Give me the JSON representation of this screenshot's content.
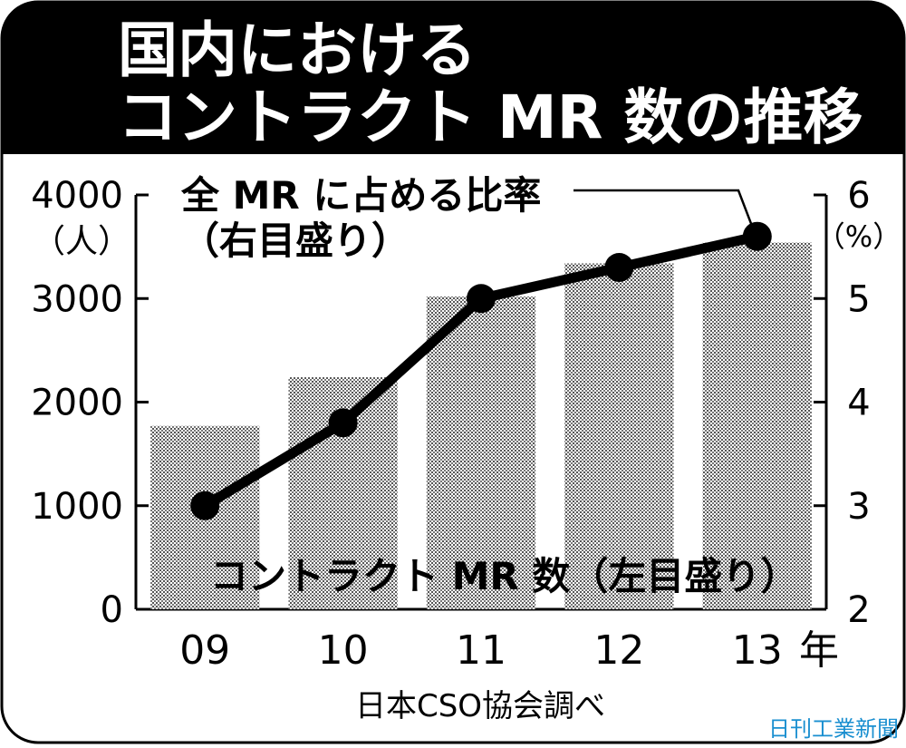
{
  "header": {
    "title_line1": "国内における",
    "title_line2": "コントラクト MR 数の推移"
  },
  "chart_data": {
    "type": "bar",
    "categories": [
      "09",
      "10",
      "11",
      "12",
      "13"
    ],
    "x_unit": "年",
    "series": [
      {
        "name": "コントラクト MR 数（左目盛り）",
        "type": "bar",
        "axis": "left",
        "values": [
          1770,
          2240,
          3020,
          3340,
          3540
        ]
      },
      {
        "name": "全 MR に占める比率（右目盛り）",
        "type": "line",
        "axis": "right",
        "values": [
          3.0,
          3.8,
          5.0,
          5.3,
          5.6
        ]
      }
    ],
    "left_axis": {
      "unit": "（人）",
      "ylim": [
        0,
        4000
      ],
      "ticks": [
        0,
        1000,
        2000,
        3000,
        4000
      ]
    },
    "right_axis": {
      "unit": "（%）",
      "ylim": [
        2,
        6
      ],
      "ticks": [
        2,
        3,
        4,
        5,
        6
      ]
    },
    "line_label_lines": [
      "全 MR に占める比率",
      "（右目盛り）"
    ],
    "bar_label": "コントラクト MR 数（左目盛り）",
    "source": "日本CSO協会調べ",
    "credit": "日刊工業新聞",
    "colors": {
      "header_bg": "#000000",
      "header_text": "#ffffff",
      "line": "#000000",
      "credit": "#1a8fd0"
    }
  }
}
